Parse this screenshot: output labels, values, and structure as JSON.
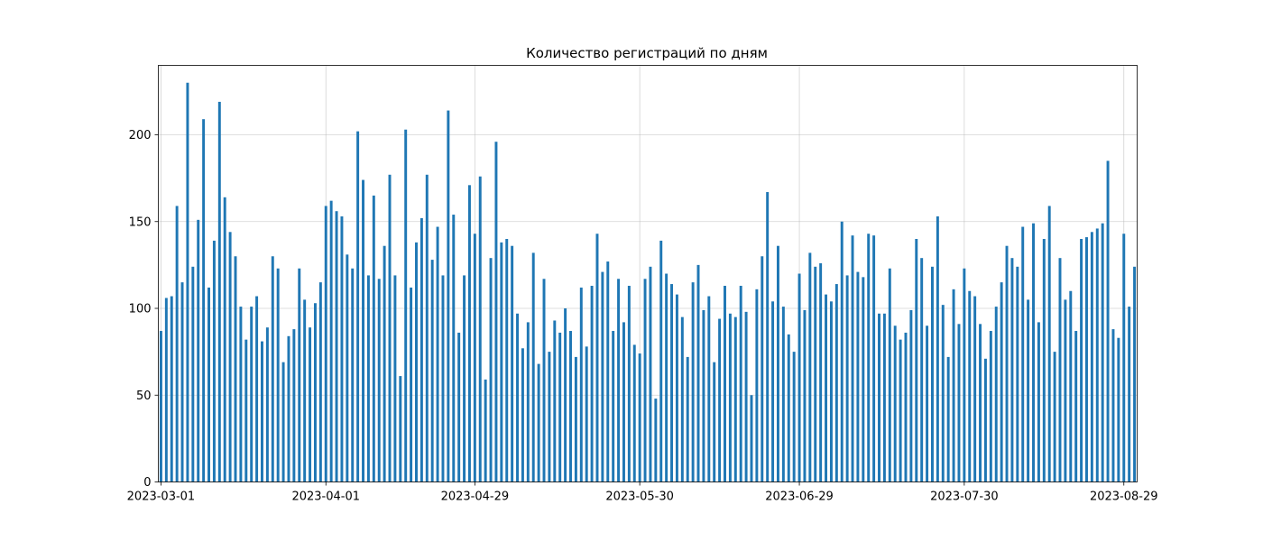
{
  "chart_data": {
    "type": "bar",
    "title": "Количество регистраций по дням",
    "xlabel": "",
    "ylabel": "",
    "grid": true,
    "start_date": "2023-03-01",
    "ylim": [
      0,
      240
    ],
    "y_ticks": [
      0,
      50,
      100,
      150,
      200
    ],
    "x_tick_labels": [
      "2023-03-01",
      "2023-04-01",
      "2023-04-29",
      "2023-05-30",
      "2023-06-29",
      "2023-07-30",
      "2023-08-29"
    ],
    "bar_color": "#1f77b4",
    "values": [
      87,
      106,
      107,
      159,
      115,
      230,
      124,
      151,
      209,
      112,
      139,
      219,
      164,
      144,
      130,
      101,
      82,
      101,
      107,
      81,
      89,
      130,
      123,
      69,
      84,
      88,
      123,
      105,
      89,
      103,
      115,
      159,
      162,
      156,
      153,
      131,
      123,
      202,
      174,
      119,
      165,
      117,
      136,
      177,
      119,
      61,
      203,
      112,
      138,
      152,
      177,
      128,
      147,
      119,
      214,
      154,
      86,
      119,
      171,
      143,
      176,
      59,
      129,
      196,
      138,
      140,
      136,
      97,
      77,
      92,
      132,
      68,
      117,
      75,
      93,
      86,
      100,
      87,
      72,
      112,
      78,
      113,
      143,
      121,
      127,
      87,
      117,
      92,
      113,
      79,
      74,
      117,
      124,
      48,
      139,
      120,
      114,
      108,
      95,
      72,
      115,
      125,
      99,
      107,
      69,
      94,
      113,
      97,
      95,
      113,
      98,
      50,
      111,
      130,
      167,
      104,
      136,
      101,
      85,
      75,
      120,
      99,
      132,
      124,
      126,
      108,
      104,
      114,
      150,
      119,
      142,
      121,
      118,
      143,
      142,
      97,
      97,
      123,
      90,
      82,
      86,
      99,
      140,
      129,
      90,
      124,
      153,
      102,
      72,
      111,
      91,
      123,
      110,
      107,
      91,
      71,
      87,
      101,
      115,
      136,
      129,
      124,
      147,
      105,
      149,
      92,
      140,
      159,
      75,
      129,
      105,
      110,
      87,
      140,
      141,
      144,
      146,
      149,
      185,
      88,
      83,
      143,
      101,
      124
    ]
  }
}
